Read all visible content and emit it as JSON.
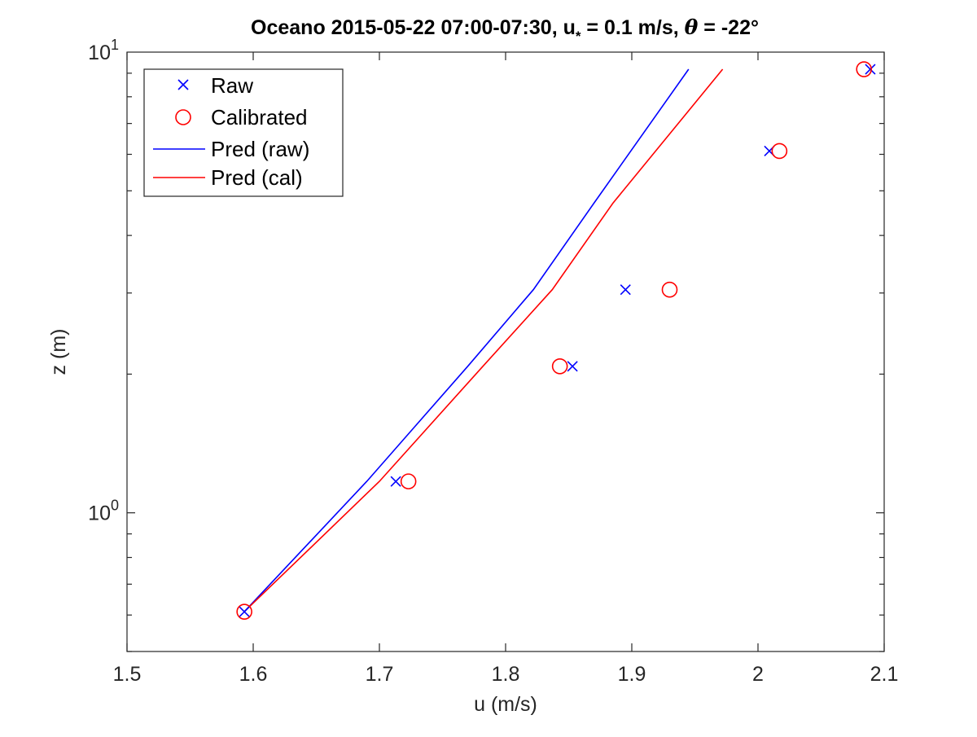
{
  "chart_data": {
    "type": "scatter",
    "title": {
      "prefix": "Oceano 2015-05-22 07:00-07:30, u",
      "sub": "*",
      "middle": " = 0.1 m/s, ",
      "theta": "θ",
      "suffix": " = -22°"
    },
    "xlabel": "u (m/s)",
    "ylabel": "z (m)",
    "xlim": [
      1.5,
      2.1
    ],
    "ylim": [
      0.5,
      10
    ],
    "yscale": "log",
    "x_ticks": [
      "1.5",
      "1.6",
      "1.7",
      "1.8",
      "1.9",
      "2",
      "2.1"
    ],
    "y_ticks": [
      {
        "value": 1,
        "base": "10",
        "exp": "0"
      },
      {
        "value": 10,
        "base": "10",
        "exp": "1"
      }
    ],
    "legend_position": "top-left",
    "series": [
      {
        "name": "Raw",
        "kind": "marker-x",
        "color": "#0000ff",
        "x": [
          1.593,
          1.713,
          1.853,
          1.895,
          2.009,
          2.089
        ],
        "y": [
          0.61,
          1.17,
          2.08,
          3.05,
          6.1,
          9.18
        ]
      },
      {
        "name": "Calibrated",
        "kind": "marker-circle",
        "color": "#ff0000",
        "x": [
          1.593,
          1.723,
          1.843,
          1.93,
          2.017,
          2.084
        ],
        "y": [
          0.61,
          1.17,
          2.08,
          3.05,
          6.1,
          9.18
        ]
      },
      {
        "name": "Pred (raw)",
        "kind": "line",
        "color": "#0000ff",
        "x": [
          1.593,
          1.69,
          1.77,
          1.822,
          1.87,
          1.945
        ],
        "y": [
          0.61,
          1.17,
          2.08,
          3.05,
          4.7,
          9.18
        ]
      },
      {
        "name": "Pred (cal)",
        "kind": "line",
        "color": "#ff0000",
        "x": [
          1.593,
          1.7,
          1.782,
          1.837,
          1.885,
          1.972
        ],
        "y": [
          0.61,
          1.17,
          2.08,
          3.05,
          4.7,
          9.18
        ]
      }
    ]
  }
}
